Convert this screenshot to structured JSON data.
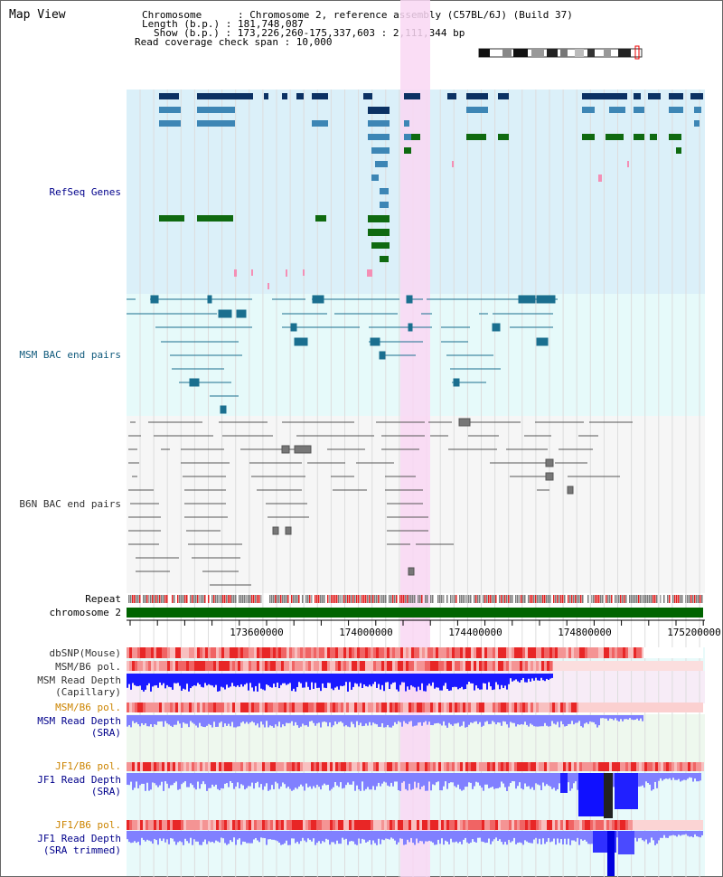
{
  "title": "Map View",
  "header": {
    "line1": "Chromosome      : Chromosome 2, reference assembly (C57BL/6J) (Build 37)",
    "line2": "Length (b.p.) : 181,748,087",
    "line3": "Show (b.p.) : 173,226,260-175,337,603 : 2,111,344 bp",
    "line4": "Read coverage check span : 10,000"
  },
  "tracks": {
    "refseq": "RefSeq Genes",
    "msm_bac": "MSM BAC end pairs",
    "b6n_bac": "B6N BAC end pairs",
    "repeat": "Repeat",
    "chromosome": "chromosome 2",
    "dbsnp": "dbSNP(Mouse)",
    "msm_b6_pol_1": "MSM/B6 pol.",
    "msm_read_depth_cap_1": "MSM Read Depth",
    "msm_read_depth_cap_2": "(Capillary)",
    "msm_b6_pol_2": "MSM/B6 pol.",
    "msm_read_depth_sra_1": "MSM Read Depth",
    "msm_read_depth_sra_2": "(SRA)",
    "jf1_b6_pol_1": "JF1/B6 pol.",
    "jf1_read_depth_sra_1": "JF1 Read Depth",
    "jf1_read_depth_sra_2": "(SRA)",
    "jf1_b6_pol_2": "JF1/B6 pol.",
    "jf1_read_depth_trim_1": "JF1 Read Depth",
    "jf1_read_depth_trim_2": "(SRA trimmed)"
  },
  "ruler": {
    "ticks": [
      "173600000",
      "174000000",
      "174400000",
      "174800000",
      "175200000"
    ]
  },
  "colors": {
    "refseq_bg": "#dbf0f9",
    "msm_bg": "#e6fafa",
    "b6n_bg": "#f6f6f6",
    "highlight": "#f9d7f3",
    "gene_dark": "#0b3163",
    "gene_mid": "#3d86b5",
    "gene_green": "#0f6a10",
    "label_blue": "#00008b",
    "label_teal": "#105a7c",
    "label_orange": "#cc8400",
    "chromosome_bar": "#006400",
    "depth_blue": "#0000ff",
    "depth_light": "#8080ff"
  }
}
